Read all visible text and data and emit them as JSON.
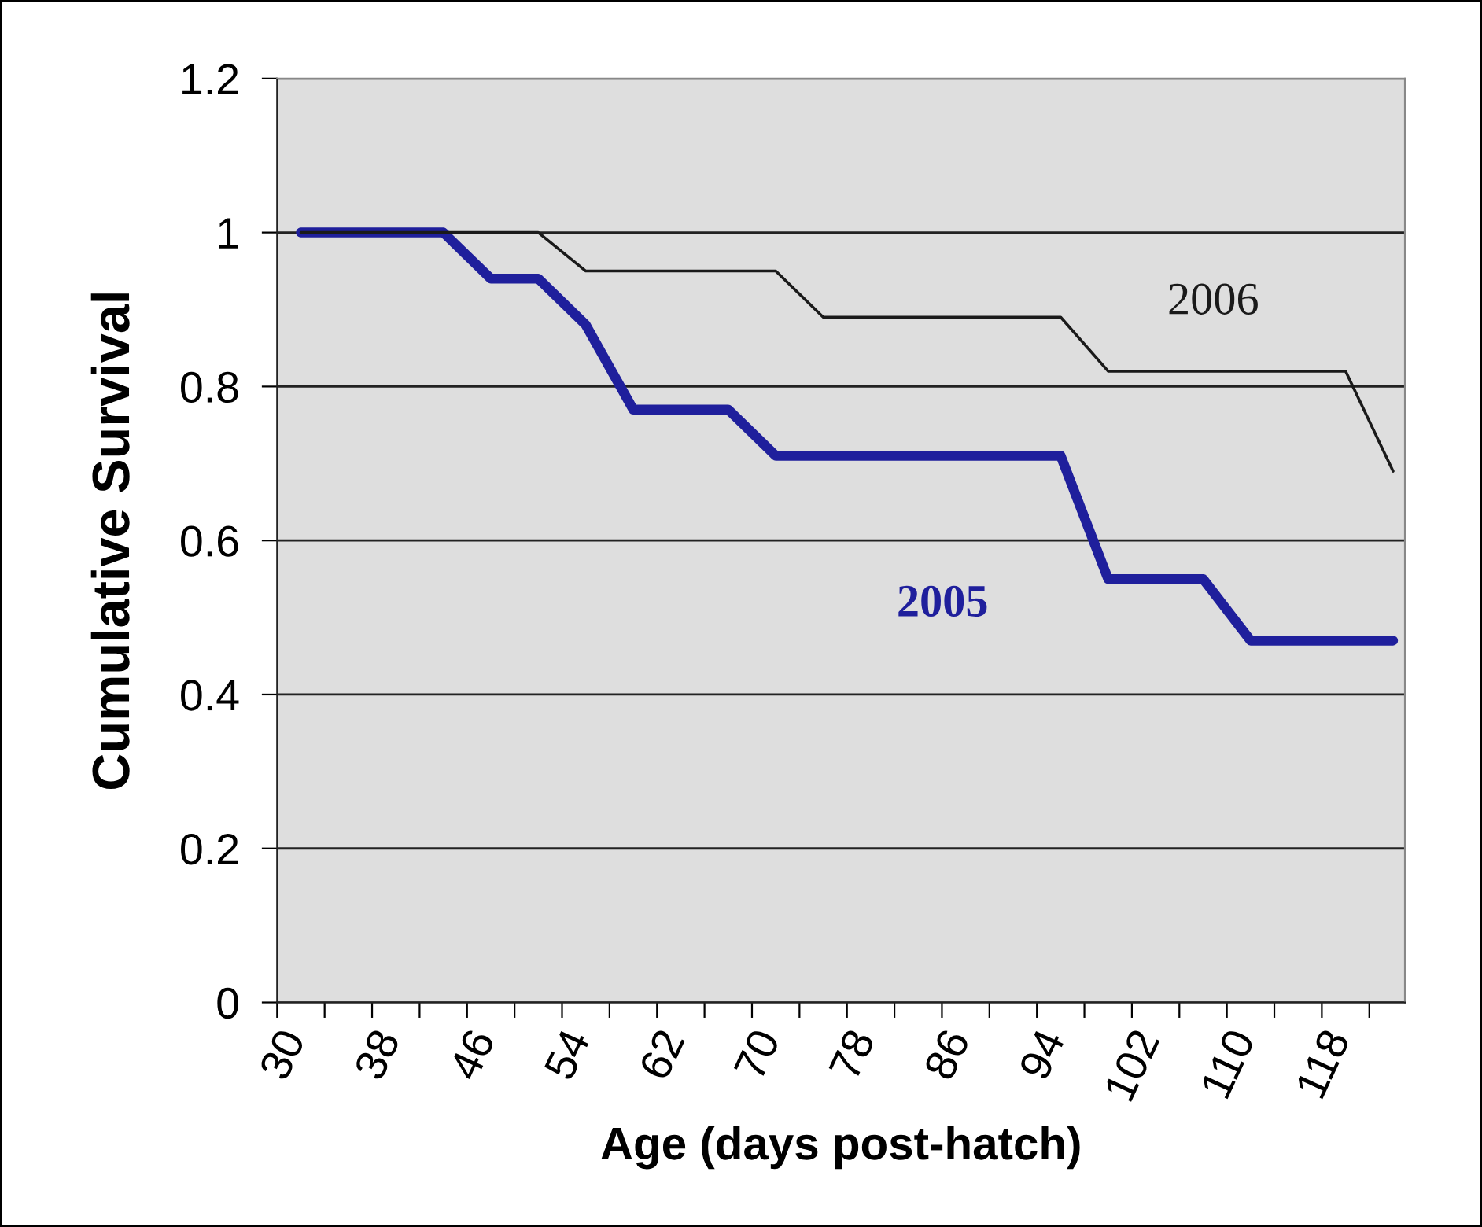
{
  "chart_data": {
    "type": "line",
    "xlabel": "Age (days post-hatch)",
    "ylabel": "Cumulative Survival",
    "series": [
      {
        "name": "2005",
        "color": "#1f1f9c",
        "x": [
          32,
          44,
          48,
          52,
          56,
          60,
          68,
          72,
          96,
          100,
          108,
          112,
          124
        ],
        "values": [
          1,
          1,
          0.94,
          0.94,
          0.88,
          0.77,
          0.77,
          0.71,
          0.71,
          0.55,
          0.55,
          0.47,
          0.47
        ]
      },
      {
        "name": "2006",
        "color": "#1a1a1a",
        "x": [
          32,
          52,
          56,
          72,
          76,
          96,
          100,
          120,
          124
        ],
        "values": [
          1,
          1,
          0.95,
          0.95,
          0.89,
          0.89,
          0.82,
          0.82,
          0.69
        ]
      }
    ],
    "xlim": [
      30,
      125
    ],
    "xticks": [
      30,
      {
        "value": 34,
        "label": null
      },
      38,
      {
        "value": 42,
        "label": null
      },
      46,
      {
        "value": 50,
        "label": null
      },
      54,
      {
        "value": 58,
        "label": null
      },
      62,
      {
        "value": 66,
        "label": null
      },
      70,
      {
        "value": 74,
        "label": null
      },
      78,
      {
        "value": 82,
        "label": null
      },
      86,
      {
        "value": 90,
        "label": null
      },
      94,
      {
        "value": 98,
        "label": null
      },
      102,
      {
        "value": 106,
        "label": null
      },
      110,
      {
        "value": 114,
        "label": null
      },
      118,
      {
        "value": 122,
        "label": null
      }
    ],
    "ylim": [
      0,
      1.2
    ],
    "yticks": [
      0,
      {
        "value": 0.2,
        "label": "0.2"
      },
      {
        "value": 0.4,
        "label": "0.4"
      },
      {
        "value": 0.6,
        "label": "0.6"
      },
      {
        "value": 0.8,
        "label": "0.8"
      },
      1,
      {
        "value": 1.2,
        "label": "1.2"
      }
    ],
    "grid": "y",
    "legend": false,
    "marker": "none",
    "line_style": "solid"
  }
}
